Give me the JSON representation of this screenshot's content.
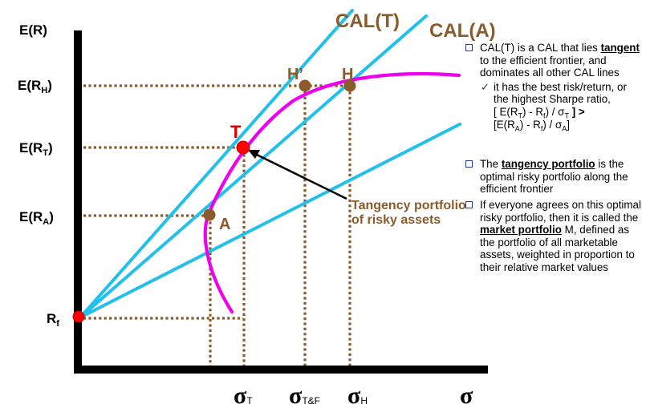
{
  "axes": {
    "y_label": "E(R)",
    "x_label": "σ",
    "y_ticks": [
      {
        "main": "E(R",
        "sub": "H",
        "close": ")"
      },
      {
        "main": "E(R",
        "sub": "T",
        "close": ")"
      },
      {
        "main": "E(R",
        "sub": "A",
        "close": ")"
      },
      {
        "main": "R",
        "sub": "f",
        "close": ""
      }
    ],
    "x_ticks": [
      {
        "main": "σ",
        "sub": "T"
      },
      {
        "main": "σ",
        "sub": "T&F"
      },
      {
        "main": "σ",
        "sub": "H"
      }
    ]
  },
  "lines": {
    "cal_t": "CAL(T)",
    "cal_a": "CAL(A)"
  },
  "points": {
    "t": "T",
    "a": "A",
    "h": "H",
    "h_prime": "H’"
  },
  "annotation": {
    "line1": "Tangency portfolio",
    "line2": "of risky assets"
  },
  "colors": {
    "cal_lines": "#22c0ea",
    "frontier": "#ee00ee",
    "guides": "#8B5A2B",
    "tangency_point": "#ff0000",
    "other_points": "#8B5A2B",
    "bullets": "#1f3a93"
  },
  "notes": {
    "n1_pre": "CAL(T) is a CAL that lies",
    "n1_bold": "tangent",
    "n1_post": "to the efficient frontier, and dominates all other CAL lines",
    "n1_sub_text": "it has the best risk/return, or the highest Sharpe ratio,",
    "n1_formula1": "[ E(R",
    "n1_formula1_s1": "T",
    "n1_formula1_mid": ") - R",
    "n1_formula1_s2": "f",
    "n1_formula1_end": ") / σ",
    "n1_formula1_s3": "T",
    "n1_formula1_close": "] >",
    "n1_formula2": "[E(R",
    "n1_formula2_s1": "A",
    "n1_formula2_mid": ") - R",
    "n1_formula2_s2": "f",
    "n1_formula2_end": ") / σ",
    "n1_formula2_s3": "A",
    "n1_formula2_close": "]",
    "n2_pre": "The",
    "n2_bold": "tangency portfolio",
    "n2_post": "is the optimal risky portfolio along the efficient frontier",
    "n3_pre": "If everyone agrees on this optimal risky portfolio, then it is called the",
    "n3_bold": "market portfolio",
    "n3_post": "M, defined as the portfolio of all marketable assets, weighted in proportion to their relative market values"
  }
}
